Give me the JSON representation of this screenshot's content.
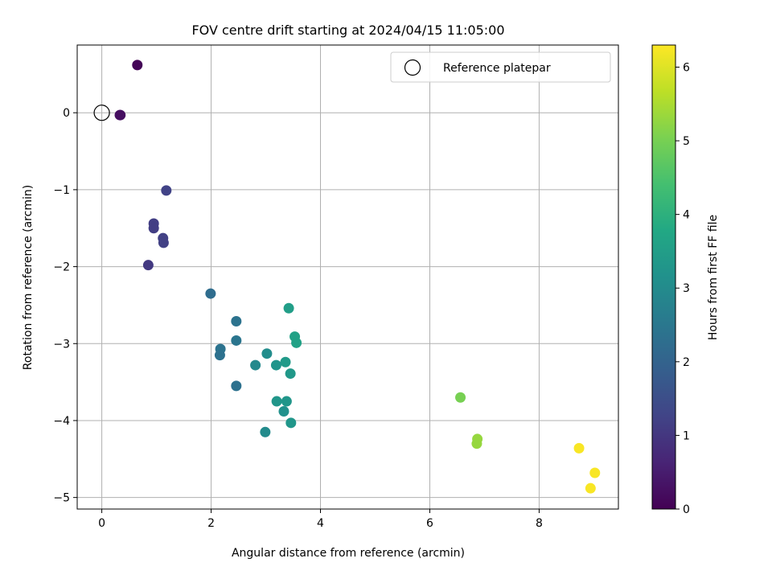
{
  "chart_data": {
    "type": "scatter",
    "title": "FOV centre drift starting at 2024/04/15 11:05:00",
    "xlabel": "Angular distance from reference (arcmin)",
    "ylabel": "Rotation from reference (arcmin)",
    "xlim": [
      -0.45,
      9.45
    ],
    "ylim": [
      -5.15,
      0.88
    ],
    "xticks": [
      0,
      2,
      4,
      6,
      8
    ],
    "yticks": [
      0,
      -1,
      -2,
      -3,
      -4,
      -5
    ],
    "xtick_labels": [
      "0",
      "2",
      "4",
      "6",
      "8"
    ],
    "ytick_labels": [
      "0",
      "−1",
      "−2",
      "−3",
      "−4",
      "−5"
    ],
    "grid": true,
    "legend": {
      "placement": "top-right",
      "entries": [
        "Reference platepar"
      ]
    },
    "reference_point": {
      "x": 0,
      "y": 0,
      "label": "Reference platepar"
    },
    "colorbar": {
      "label": "Hours from first FF file",
      "colormap": "viridis",
      "range": [
        0,
        6.3
      ],
      "ticks": [
        0,
        1,
        2,
        3,
        4,
        5,
        6
      ],
      "tick_labels": [
        "0",
        "1",
        "2",
        "3",
        "4",
        "5",
        "6"
      ]
    },
    "points": [
      {
        "x": 0.65,
        "y": 0.62,
        "t": 0.05
      },
      {
        "x": 0.34,
        "y": -0.03,
        "t": 0.2
      },
      {
        "x": 0.33,
        "y": -0.03,
        "t": 0.25
      },
      {
        "x": 1.18,
        "y": -1.01,
        "t": 1.25
      },
      {
        "x": 0.95,
        "y": -1.44,
        "t": 1.15
      },
      {
        "x": 0.95,
        "y": -1.5,
        "t": 1.15
      },
      {
        "x": 1.12,
        "y": -1.63,
        "t": 1.2
      },
      {
        "x": 1.13,
        "y": -1.69,
        "t": 1.2
      },
      {
        "x": 0.85,
        "y": -1.98,
        "t": 1.05
      },
      {
        "x": 1.99,
        "y": -2.35,
        "t": 2.25
      },
      {
        "x": 2.46,
        "y": -2.71,
        "t": 2.4
      },
      {
        "x": 2.46,
        "y": -2.96,
        "t": 2.45
      },
      {
        "x": 2.17,
        "y": -3.07,
        "t": 2.4
      },
      {
        "x": 2.16,
        "y": -3.15,
        "t": 2.35
      },
      {
        "x": 2.46,
        "y": -3.55,
        "t": 2.35
      },
      {
        "x": 3.42,
        "y": -2.54,
        "t": 3.5
      },
      {
        "x": 3.53,
        "y": -2.91,
        "t": 3.6
      },
      {
        "x": 3.56,
        "y": -2.99,
        "t": 3.6
      },
      {
        "x": 3.02,
        "y": -3.13,
        "t": 3.05
      },
      {
        "x": 3.36,
        "y": -3.24,
        "t": 3.4
      },
      {
        "x": 2.81,
        "y": -3.28,
        "t": 2.95
      },
      {
        "x": 3.19,
        "y": -3.28,
        "t": 3.25
      },
      {
        "x": 3.45,
        "y": -3.39,
        "t": 3.35
      },
      {
        "x": 3.2,
        "y": -3.75,
        "t": 3.3
      },
      {
        "x": 3.38,
        "y": -3.75,
        "t": 3.3
      },
      {
        "x": 3.33,
        "y": -3.88,
        "t": 3.15
      },
      {
        "x": 3.46,
        "y": -4.03,
        "t": 3.3
      },
      {
        "x": 2.99,
        "y": -4.15,
        "t": 3.0
      },
      {
        "x": 6.56,
        "y": -3.7,
        "t": 5.0
      },
      {
        "x": 6.87,
        "y": -4.24,
        "t": 5.3
      },
      {
        "x": 6.86,
        "y": -4.3,
        "t": 5.3
      },
      {
        "x": 8.73,
        "y": -4.36,
        "t": 6.25
      },
      {
        "x": 9.02,
        "y": -4.68,
        "t": 6.25
      },
      {
        "x": 8.94,
        "y": -4.88,
        "t": 6.25
      }
    ]
  }
}
